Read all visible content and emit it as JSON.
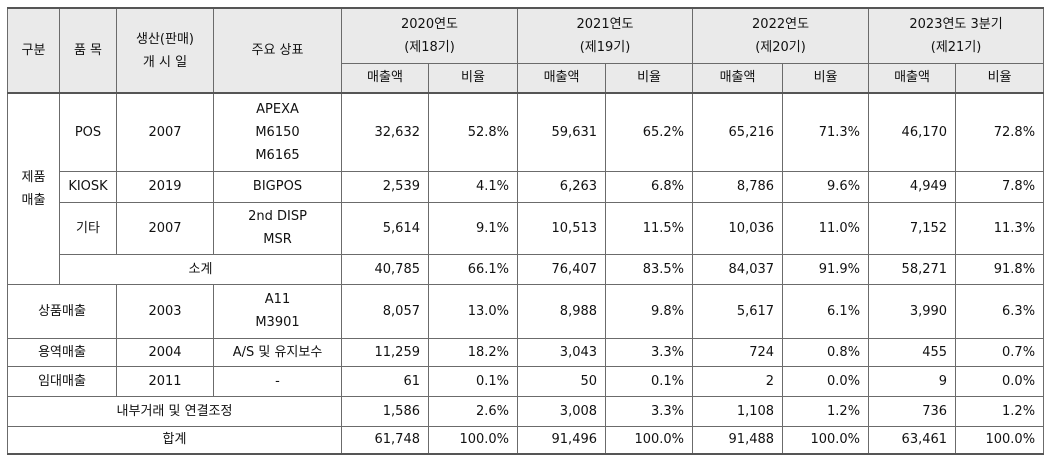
{
  "header": {
    "gubun": "구분",
    "item": "품 목",
    "start": "생산(판매)\n개 시 일",
    "brand": "주요 상표",
    "periods": [
      "2020연도\n(제18기)",
      "2021연도\n(제19기)",
      "2022연도\n(제20기)",
      "2023연도 3분기\n(제21기)"
    ],
    "sales": "매출액",
    "ratio": "비율"
  },
  "product_sales_label": "제품\n매출",
  "rows": {
    "pos": {
      "item": "POS",
      "start": "2007",
      "brand": "APEXA\nM6150\nM6165",
      "v": [
        "32,632",
        "52.8%",
        "59,631",
        "65.2%",
        "65,216",
        "71.3%",
        "46,170",
        "72.8%"
      ]
    },
    "kiosk": {
      "item": "KIOSK",
      "start": "2019",
      "brand": "BIGPOS",
      "v": [
        "2,539",
        "4.1%",
        "6,263",
        "6.8%",
        "8,786",
        "9.6%",
        "4,949",
        "7.8%"
      ]
    },
    "etc": {
      "item": "기타",
      "start": "2007",
      "brand": "2nd DISP\nMSR",
      "v": [
        "5,614",
        "9.1%",
        "10,513",
        "11.5%",
        "10,036",
        "11.0%",
        "7,152",
        "11.3%"
      ]
    },
    "subtotal": {
      "label": "소계",
      "v": [
        "40,785",
        "66.1%",
        "76,407",
        "83.5%",
        "84,037",
        "91.9%",
        "58,271",
        "91.8%"
      ]
    },
    "goods": {
      "label": "상품매출",
      "start": "2003",
      "brand": "A11\nM3901",
      "v": [
        "8,057",
        "13.0%",
        "8,988",
        "9.8%",
        "5,617",
        "6.1%",
        "3,990",
        "6.3%"
      ]
    },
    "service": {
      "label": "용역매출",
      "start": "2004",
      "brand": "A/S 및 유지보수",
      "v": [
        "11,259",
        "18.2%",
        "3,043",
        "3.3%",
        "724",
        "0.8%",
        "455",
        "0.7%"
      ]
    },
    "rental": {
      "label": "임대매출",
      "start": "2011",
      "brand": "-",
      "v": [
        "61",
        "0.1%",
        "50",
        "0.1%",
        "2",
        "0.0%",
        "9",
        "0.0%"
      ]
    },
    "internal": {
      "label": "내부거래 및 연결조정",
      "v": [
        "1,586",
        "2.6%",
        "3,008",
        "3.3%",
        "1,108",
        "1.2%",
        "736",
        "1.2%"
      ]
    },
    "total": {
      "label": "합계",
      "v": [
        "61,748",
        "100.0%",
        "91,496",
        "100.0%",
        "91,488",
        "100.0%",
        "63,461",
        "100.0%"
      ]
    }
  }
}
